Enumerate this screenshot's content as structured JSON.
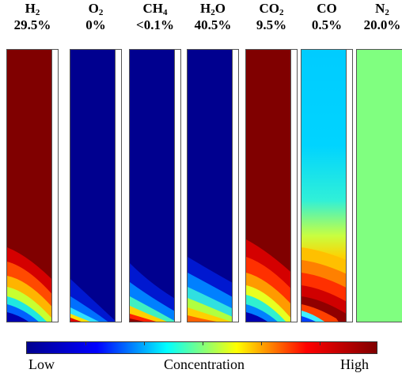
{
  "species": [
    {
      "formula": "H",
      "sub": "2",
      "percent": "29.5%",
      "profile": "h2"
    },
    {
      "formula": "O",
      "sub": "2",
      "percent": "0%",
      "profile": "o2"
    },
    {
      "formula": "CH",
      "sub": "4",
      "percent": "<0.1%",
      "profile": "ch4"
    },
    {
      "formula": "H",
      "sub": "2",
      "formula2": "O",
      "percent": "40.5%",
      "profile": "h2o"
    },
    {
      "formula": "CO",
      "sub": "2",
      "percent": "9.5%",
      "profile": "co2"
    },
    {
      "formula": "CO",
      "percent": "0.5%",
      "profile": "co"
    },
    {
      "formula": "N",
      "sub": "2",
      "percent": "20.0%",
      "profile": "n2"
    }
  ],
  "colorbar": {
    "low_label": "Low",
    "mid_label": "Concentration",
    "high_label": "High",
    "colormap": [
      "#00008f",
      "#0000ff",
      "#00ffff",
      "#ffff00",
      "#ff0000",
      "#800000"
    ]
  },
  "colors": {
    "high": "#800000",
    "low": "#00008f",
    "uniform_n2": "#80ff80",
    "co_bulk": "#00c8ff"
  }
}
